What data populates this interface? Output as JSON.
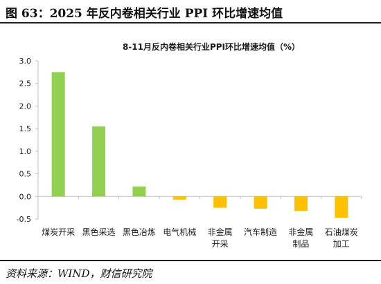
{
  "figure": {
    "caption": "图 63：2025 年反内卷相关行业 PPI 环比增速均值",
    "source": "资料来源：WIND，财信研究院"
  },
  "colors": {
    "positive": "#92d050",
    "negative": "#ffc000",
    "axis": "#bfbfbf",
    "text": "#1a1a1a"
  },
  "chart_data": {
    "type": "bar",
    "title": "8-11月反内卷相关行业PPI环比增速均值（%）",
    "xlabel": "",
    "ylabel": "",
    "ylim": [
      -0.5,
      3.0
    ],
    "yticks": [
      "3.0",
      "2.5",
      "2.0",
      "1.5",
      "1.0",
      "0.5",
      "0.0",
      "-0.5"
    ],
    "grid": false,
    "legend": "none",
    "categories": [
      [
        "煤炭开采"
      ],
      [
        "黑色采选"
      ],
      [
        "黑色冶炼"
      ],
      [
        "电气机械"
      ],
      [
        "非金属",
        "开采"
      ],
      [
        "汽车制造"
      ],
      [
        "非金属",
        "制品"
      ],
      [
        "石油煤炭",
        "加工"
      ]
    ],
    "values": [
      2.75,
      1.55,
      0.22,
      -0.07,
      -0.25,
      -0.27,
      -0.32,
      -0.47
    ]
  }
}
